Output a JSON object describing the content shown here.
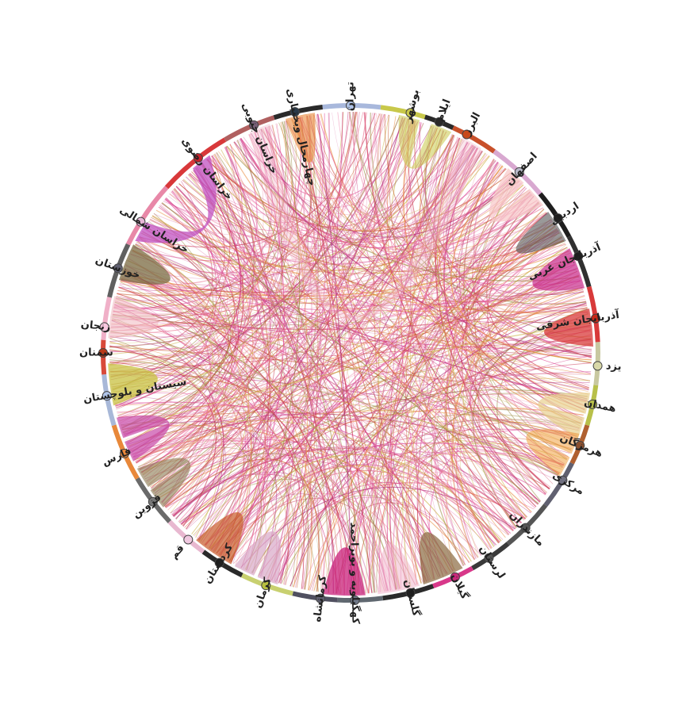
{
  "diagram": {
    "type": "chord",
    "nodes": [
      {
        "label": "تهران",
        "angle_deg": 0,
        "color": "#a8b8dc",
        "node": "#b0c4e8"
      },
      {
        "label": "بوشهر",
        "angle_deg": 14,
        "color": "#c8c84a",
        "node": "#c8c84a"
      },
      {
        "label": "ایلام",
        "angle_deg": 21,
        "color": "#2a2a2a",
        "node": "#2a2a2a"
      },
      {
        "label": "البرز",
        "angle_deg": 28,
        "color": "#c8502a",
        "node": "#c84a1a"
      },
      {
        "label": "اصفهان",
        "angle_deg": 43,
        "color": "#d8a8d0",
        "node": "#b8b8c8"
      },
      {
        "label": "اردبیل",
        "angle_deg": 57,
        "color": "#1e1e1e",
        "node": "#1e1e1e"
      },
      {
        "label": "آذربایجان غربی",
        "angle_deg": 67,
        "color": "#303030",
        "node": "#1e1e1e"
      },
      {
        "label": "آذربایجان شرقی",
        "angle_deg": 82,
        "color": "#d83a3a",
        "node": "#c82a1a"
      },
      {
        "label": "یزد",
        "angle_deg": 93,
        "color": "#c8c8a0",
        "node": "#d8d8a8"
      },
      {
        "label": "همدان",
        "angle_deg": 102,
        "color": "#b8c04a",
        "node": "#b8c04a"
      },
      {
        "label": "هرمزگان",
        "angle_deg": 112,
        "color": "#b06030",
        "node": "#8a5030"
      },
      {
        "label": "مرکزی",
        "angle_deg": 121,
        "color": "#606070",
        "node": "#707080"
      },
      {
        "label": "مازندران",
        "angle_deg": 135,
        "color": "#555555",
        "node": "#555555"
      },
      {
        "label": "لرستان",
        "angle_deg": 146,
        "color": "#3a3a3a",
        "node": "#555555"
      },
      {
        "label": "گیلان",
        "angle_deg": 155,
        "color": "#d8388a",
        "node": "#c8287a"
      },
      {
        "label": "گلستان",
        "angle_deg": 166,
        "color": "#2a2a2a",
        "node": "#1e1e1e"
      },
      {
        "label": "کهگیلویه و بویراحمد",
        "angle_deg": 179,
        "color": "#606870",
        "node": "#707888"
      },
      {
        "label": "کرمانشاه",
        "angle_deg": 187,
        "color": "#505060",
        "node": "#606070"
      },
      {
        "label": "کرمان",
        "angle_deg": 200,
        "color": "#c8d070",
        "node": "#b8c040"
      },
      {
        "label": "کردستان",
        "angle_deg": 212,
        "color": "#2a2a2a",
        "node": "#1e1e1e"
      },
      {
        "label": "قم",
        "angle_deg": 221,
        "color": "#e8b8d0",
        "node": "#f0c8e0"
      },
      {
        "label": "قزوین",
        "angle_deg": 233,
        "color": "#6a6a6a",
        "node": "#787878"
      },
      {
        "label": "فارس",
        "angle_deg": 246,
        "color": "#e8883a",
        "node": "#e8883a"
      },
      {
        "label": "سیستان و بلوچستان",
        "angle_deg": 260,
        "color": "#a8b8d8",
        "node": "#b0c4e8"
      },
      {
        "label": "سمنان",
        "angle_deg": 270,
        "color": "#d84a3a",
        "node": "#b83a1a"
      },
      {
        "label": "زنجان",
        "angle_deg": 276,
        "color": "#f0b0c8",
        "node": "#f8c8e0"
      },
      {
        "label": "خوزستان",
        "angle_deg": 290,
        "color": "#606060",
        "node": "#606070"
      },
      {
        "label": "خراسان شمالی",
        "angle_deg": 302,
        "color": "#e888a8",
        "node": "#e8b8d8"
      },
      {
        "label": "خراسان رضوی",
        "angle_deg": 322,
        "color": "#d8383a",
        "node": "#c8202a"
      },
      {
        "label": "خراسان جنوبی",
        "angle_deg": 337,
        "color": "#b06060",
        "node": "#786078"
      },
      {
        "label": "چهارمحال وبختیاری",
        "angle_deg": 347,
        "color": "#2a2a2a",
        "node": "#2a3a4a"
      }
    ],
    "palette": [
      "#d0307f",
      "#e04a9a",
      "#b03080",
      "#e86a8a",
      "#c85a2a",
      "#e88a3a",
      "#c8b040",
      "#9a8a40",
      "#d86aa0",
      "#f08ab0",
      "#c83050"
    ],
    "bands": [
      {
        "from": 322,
        "to": 300,
        "color": "#c050c0",
        "opacity": 0.75
      },
      {
        "from": 338,
        "to": 30,
        "color": "#f0b8c8",
        "opacity": 0.35
      },
      {
        "from": 349,
        "to": 347,
        "color": "#e8883a",
        "opacity": 0.6
      },
      {
        "from": 14,
        "to": 22,
        "color": "#c8c84a",
        "opacity": 0.55
      },
      {
        "from": 43,
        "to": 50,
        "color": "#f8c8c8",
        "opacity": 0.7
      },
      {
        "from": 57,
        "to": 60,
        "color": "#555555",
        "opacity": 0.6
      },
      {
        "from": 67,
        "to": 72,
        "color": "#c82a8a",
        "opacity": 0.7
      },
      {
        "from": 82,
        "to": 86,
        "color": "#d83a3a",
        "opacity": 0.75
      },
      {
        "from": 102,
        "to": 108,
        "color": "#e8d090",
        "opacity": 0.7
      },
      {
        "from": 112,
        "to": 118,
        "color": "#f0a040",
        "opacity": 0.55
      },
      {
        "from": 155,
        "to": 160,
        "color": "#8a6a40",
        "opacity": 0.7
      },
      {
        "from": 166,
        "to": 171,
        "color": "#f0b0c8",
        "opacity": 0.5
      },
      {
        "from": 179,
        "to": 184,
        "color": "#c8207a",
        "opacity": 0.75
      },
      {
        "from": 200,
        "to": 206,
        "color": "#d8a8c8",
        "opacity": 0.7
      },
      {
        "from": 212,
        "to": 217,
        "color": "#c85a2a",
        "opacity": 0.7
      },
      {
        "from": 233,
        "to": 239,
        "color": "#8a7a50",
        "opacity": 0.6
      },
      {
        "from": 246,
        "to": 252,
        "color": "#c848a8",
        "opacity": 0.7
      },
      {
        "from": 260,
        "to": 265,
        "color": "#c8c040",
        "opacity": 0.75
      },
      {
        "from": 276,
        "to": 281,
        "color": "#f0b8c0",
        "opacity": 0.55
      },
      {
        "from": 290,
        "to": 294,
        "color": "#7a6a40",
        "opacity": 0.75
      }
    ]
  }
}
